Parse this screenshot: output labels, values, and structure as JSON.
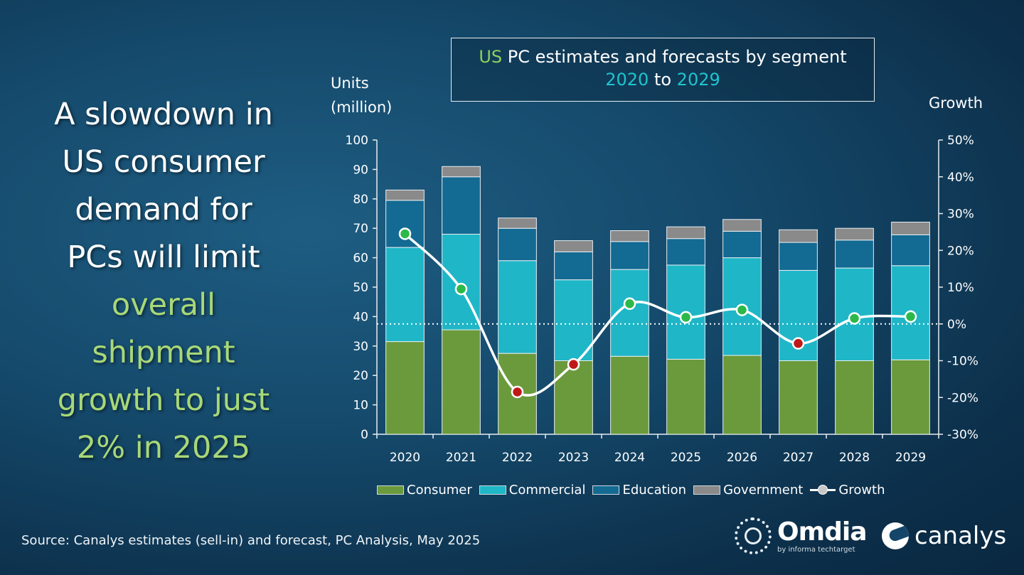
{
  "headline": {
    "lines_white": [
      "A slowdown in",
      "US consumer",
      "demand for",
      "PCs will limit"
    ],
    "lines_green": [
      "overall",
      "shipment",
      "growth to just",
      "2% in 2025"
    ]
  },
  "title_box": {
    "part1": "US",
    "part2": " PC estimates and forecasts by segment",
    "part3": "2020",
    "part4": " to ",
    "part5": "2029"
  },
  "units_label": [
    "Units",
    "(million)"
  ],
  "growth_label": "Growth",
  "source": "Source: Canalys estimates (sell-in) and forecast, PC Analysis, May 2025",
  "logos": {
    "omdia": "Omdia",
    "omdia_sub": "by informa techtarget",
    "canalys": "canalys"
  },
  "colors": {
    "consumer": "#6b9a3c",
    "commercial": "#1fb6c7",
    "education": "#136a93",
    "government": "#8a8a8a",
    "growth_line": "#ffffff",
    "growth_positive": "#2cb94a",
    "growth_negative": "#c01818"
  },
  "chart_data": {
    "type": "bar",
    "stacked": true,
    "categories": [
      "2020",
      "2021",
      "2022",
      "2023",
      "2024",
      "2025",
      "2026",
      "2027",
      "2028",
      "2029"
    ],
    "series": [
      {
        "name": "Consumer",
        "values": [
          31.5,
          35.5,
          27.5,
          25.0,
          26.5,
          25.5,
          26.8,
          25.0,
          25.0,
          25.3
        ]
      },
      {
        "name": "Commercial",
        "values": [
          32.0,
          32.5,
          31.5,
          27.5,
          29.5,
          32.0,
          33.2,
          30.7,
          31.5,
          32.0
        ]
      },
      {
        "name": "Education",
        "values": [
          16.0,
          19.5,
          11.0,
          9.5,
          9.5,
          9.0,
          9.0,
          9.5,
          9.5,
          10.5
        ]
      },
      {
        "name": "Government",
        "values": [
          3.5,
          3.5,
          3.5,
          3.8,
          3.7,
          4.0,
          4.0,
          4.3,
          4.0,
          4.3
        ]
      }
    ],
    "growth": {
      "name": "Growth",
      "values": [
        24.5,
        9.5,
        -18.5,
        -11.0,
        5.5,
        1.8,
        3.8,
        -5.3,
        1.5,
        2.0
      ]
    },
    "y_left": {
      "min": 0,
      "max": 100,
      "step": 10,
      "ticks": [
        "0",
        "10",
        "20",
        "30",
        "40",
        "50",
        "60",
        "70",
        "80",
        "90",
        "100"
      ]
    },
    "y_right": {
      "min": -30,
      "max": 50,
      "step": 10,
      "ticks": [
        "-30%",
        "-20%",
        "-10%",
        "0%",
        "10%",
        "20%",
        "30%",
        "40%",
        "50%"
      ]
    },
    "legend": [
      "Consumer",
      "Commercial",
      "Education",
      "Government",
      "Growth"
    ],
    "legend_position": "bottom"
  }
}
